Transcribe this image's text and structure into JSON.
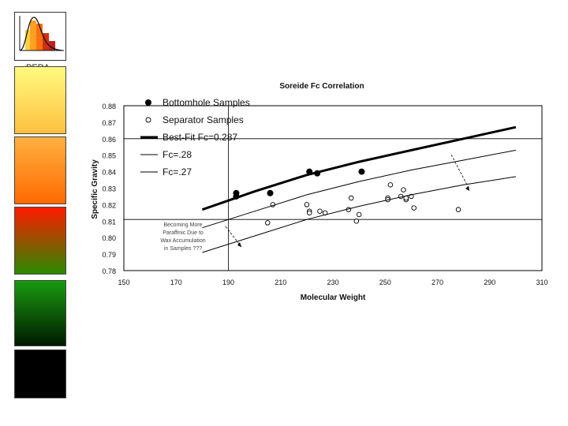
{
  "logo": {
    "text": "PERA",
    "icon": "distribution-curve-icon"
  },
  "side_swatches": [
    "#ffd060",
    "#ff8a20",
    "#c83010",
    "#0a6a08",
    "#000000"
  ],
  "chart_data": {
    "type": "scatter",
    "title": "Soreide Fc Correlation",
    "xlabel": "Molecular Weight",
    "ylabel": "Specific Gravity",
    "xlim": [
      150,
      310
    ],
    "ylim": [
      0.78,
      0.88
    ],
    "xticks": [
      "150",
      "170",
      "190",
      "210",
      "230",
      "250",
      "270",
      "290",
      "310"
    ],
    "yticks": [
      "0.88",
      "0.87",
      "0.86",
      "0.85",
      "0.84",
      "0.83",
      "0.82",
      "0.81",
      "0.80",
      "0.79",
      "0.78"
    ],
    "grid": false,
    "legend_position": "top-left",
    "series": [
      {
        "name": "Bottomhole Samples",
        "kind": "points",
        "marker": "filled",
        "points": [
          [
            193,
            0.827
          ],
          [
            193,
            0.825
          ],
          [
            206,
            0.827
          ],
          [
            221,
            0.84
          ],
          [
            224,
            0.839
          ],
          [
            241,
            0.84
          ]
        ]
      },
      {
        "name": "Separator Samples",
        "kind": "points",
        "marker": "open",
        "points": [
          [
            205,
            0.809
          ],
          [
            207,
            0.82
          ],
          [
            220,
            0.82
          ],
          [
            221,
            0.816
          ],
          [
            221,
            0.815
          ],
          [
            225,
            0.816
          ],
          [
            227,
            0.815
          ],
          [
            236,
            0.817
          ],
          [
            237,
            0.824
          ],
          [
            239,
            0.81
          ],
          [
            240,
            0.814
          ],
          [
            251,
            0.824
          ],
          [
            251,
            0.823
          ],
          [
            252,
            0.832
          ],
          [
            256,
            0.825
          ],
          [
            257,
            0.829
          ],
          [
            258,
            0.823
          ],
          [
            258,
            0.824
          ],
          [
            260,
            0.825
          ],
          [
            261,
            0.818
          ],
          [
            278,
            0.817
          ]
        ]
      },
      {
        "name": "Best-Fit Fc=0.287",
        "kind": "line",
        "style": "thick",
        "points": [
          [
            180,
            0.817
          ],
          [
            200,
            0.828
          ],
          [
            220,
            0.838
          ],
          [
            240,
            0.846
          ],
          [
            260,
            0.853
          ],
          [
            280,
            0.86
          ],
          [
            300,
            0.867
          ]
        ]
      },
      {
        "name": "Fc=.28",
        "kind": "line",
        "style": "thin",
        "points": [
          [
            180,
            0.806
          ],
          [
            200,
            0.816
          ],
          [
            220,
            0.826
          ],
          [
            240,
            0.834
          ],
          [
            260,
            0.841
          ],
          [
            280,
            0.847
          ],
          [
            300,
            0.853
          ]
        ]
      },
      {
        "name": "Fc=.27",
        "kind": "line",
        "style": "thin",
        "points": [
          [
            180,
            0.791
          ],
          [
            200,
            0.801
          ],
          [
            220,
            0.811
          ],
          [
            240,
            0.819
          ],
          [
            260,
            0.826
          ],
          [
            280,
            0.832
          ],
          [
            300,
            0.837
          ]
        ]
      }
    ],
    "reference_lines": {
      "h": [
        0.86,
        0.811
      ],
      "v": [
        190
      ]
    },
    "annotation": {
      "lines": [
        "Becoming More",
        "Paraffinic Due to",
        "Wax Accumulation",
        "in Samples ???"
      ]
    }
  }
}
